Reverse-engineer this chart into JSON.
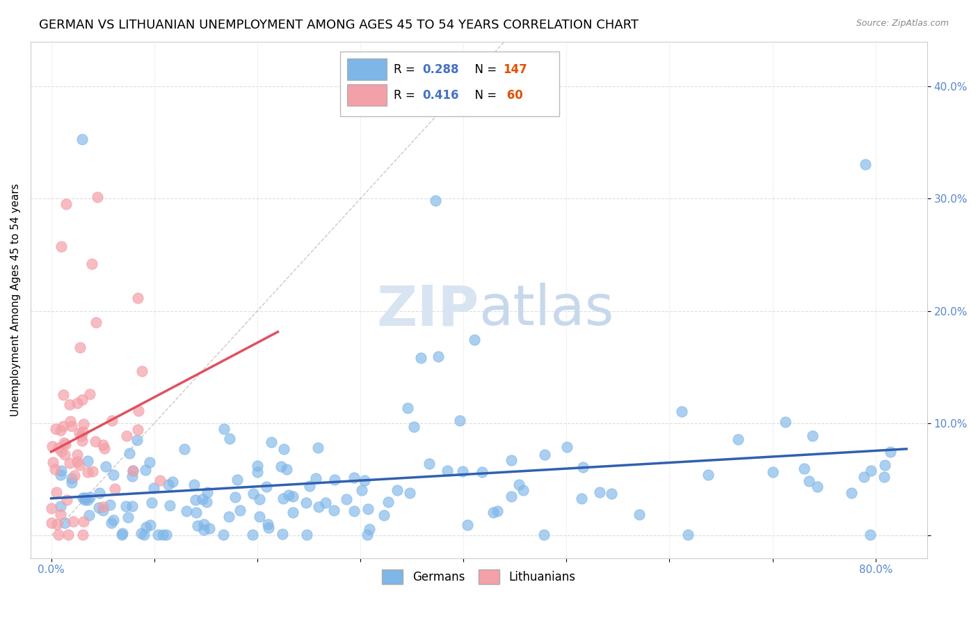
{
  "title": "GERMAN VS LITHUANIAN UNEMPLOYMENT AMONG AGES 45 TO 54 YEARS CORRELATION CHART",
  "source_text": "Source: ZipAtlas.com",
  "ylabel": "Unemployment Among Ages 45 to 54 years",
  "xlim": [
    -0.02,
    0.85
  ],
  "ylim": [
    -0.02,
    0.44
  ],
  "xticks": [
    0.0,
    0.1,
    0.2,
    0.3,
    0.4,
    0.5,
    0.6,
    0.7,
    0.8
  ],
  "xticklabels": [
    "0.0%",
    "",
    "",
    "",
    "",
    "",
    "",
    "",
    "80.0%"
  ],
  "yticks": [
    0.0,
    0.1,
    0.2,
    0.3,
    0.4
  ],
  "yticklabels": [
    "",
    "10.0%",
    "20.0%",
    "30.0%",
    "40.0%"
  ],
  "german_color": "#7EB6E8",
  "lithuanian_color": "#F4A0A8",
  "german_line_color": "#3060B0",
  "lithuanian_line_color": "#E05060",
  "watermark_text": "ZIPatlas",
  "watermark_color": "#D8E4F2",
  "legend_R_german": "0.288",
  "legend_N_german": "147",
  "legend_R_lithuanian": "0.416",
  "legend_N_lithuanian": "60",
  "german_R": 0.288,
  "german_N": 147,
  "lithuanian_R": 0.416,
  "lithuanian_N": 60,
  "title_fontsize": 13,
  "axis_label_fontsize": 11,
  "tick_fontsize": 11,
  "legend_fontsize": 12,
  "background_color": "#FFFFFF",
  "grid_color": "#DDDDDD",
  "diag_line_color": "#BBBBBB",
  "german_seed": 42,
  "lithuanian_seed": 77
}
